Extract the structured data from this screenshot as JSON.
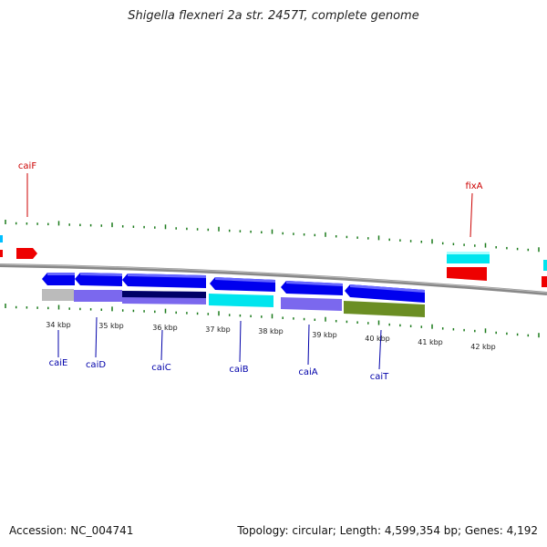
{
  "title": "Shigella flexneri 2a str. 2457T, complete genome",
  "footer": {
    "accession": "Accession: NC_004741",
    "summary": "Topology: circular; Length: 4,599,354 bp; Genes: 4,192"
  },
  "colors": {
    "forward_gene": "#0000ee",
    "cyan_gene": "#00e5ee",
    "red_gene": "#ee0000",
    "tick": "#1a7a1a",
    "backbone": "#888888",
    "label_blue": "#0000aa",
    "label_red": "#cc0000",
    "cog_gray": "#bbbbbb",
    "cog_purple": "#7b68ee",
    "cog_navy": "#000066",
    "cog_cyan": "#00e5ee",
    "cog_green": "#6b8e23"
  },
  "scale": {
    "unit": "kbp",
    "ticks": [
      {
        "label": "34 kbp"
      },
      {
        "label": "35 kbp"
      },
      {
        "label": "36 kbp"
      },
      {
        "label": "37 kbp"
      },
      {
        "label": "38 kbp"
      },
      {
        "label": "39 kbp"
      },
      {
        "label": "40 kbp"
      },
      {
        "label": "41 kbp"
      },
      {
        "label": "42 kbp"
      }
    ]
  },
  "genes": [
    {
      "name": "caiF",
      "label_color": "red"
    },
    {
      "name": "caiE",
      "label_color": "blue"
    },
    {
      "name": "caiD",
      "label_color": "blue"
    },
    {
      "name": "caiC",
      "label_color": "blue"
    },
    {
      "name": "caiB",
      "label_color": "blue"
    },
    {
      "name": "caiA",
      "label_color": "blue"
    },
    {
      "name": "caiT",
      "label_color": "blue"
    },
    {
      "name": "fixA",
      "label_color": "red"
    }
  ]
}
